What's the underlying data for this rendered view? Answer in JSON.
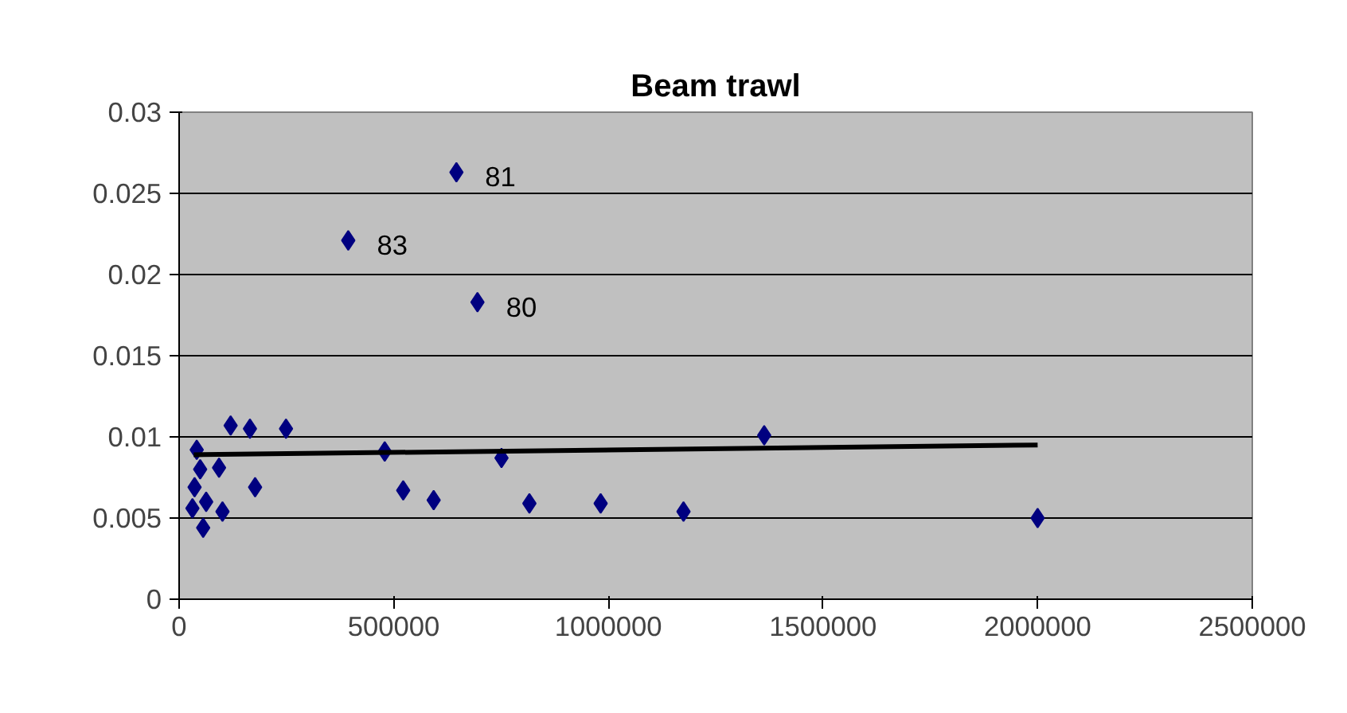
{
  "chart_data": {
    "type": "scatter",
    "title": "Beam trawl",
    "series": [
      {
        "marker": "diamond",
        "color": "#000080",
        "x": [
          41000,
          120000,
          165000,
          249000,
          49000,
          93000,
          36000,
          177000,
          31000,
          63000,
          101000,
          56000,
          479000,
          522000,
          593000,
          646000,
          695000,
          751000,
          816000,
          982000,
          1175000,
          1363000,
          2000000,
          394000
        ],
        "values": [
          0.0092,
          0.0107,
          0.0105,
          0.0105,
          0.008,
          0.0081,
          0.0069,
          0.0069,
          0.0056,
          0.006,
          0.0054,
          0.0044,
          0.0091,
          0.0067,
          0.0061,
          0.0263,
          0.0183,
          0.0087,
          0.0059,
          0.0059,
          0.0054,
          0.0101,
          0.005,
          0.0221
        ]
      },
      {
        "type": "line",
        "marker": "none",
        "color": "#000000",
        "x": [
          34000,
          2000000
        ],
        "values": [
          0.0089,
          0.0095
        ]
      }
    ],
    "annotations": [
      {
        "text": "81",
        "x": 646000,
        "y": 0.0263
      },
      {
        "text": "80",
        "x": 695000,
        "y": 0.0183
      },
      {
        "text": "83",
        "x": 394000,
        "y": 0.0221
      }
    ],
    "xlim": [
      0,
      2500000
    ],
    "xticks": [
      0,
      500000,
      1000000,
      1500000,
      2000000,
      2500000
    ],
    "ylim": [
      0,
      0.03
    ],
    "yticks": [
      0,
      0.005,
      0.01,
      0.015,
      0.02,
      0.025,
      0.03
    ],
    "grid": "y",
    "line_style": "solid"
  }
}
